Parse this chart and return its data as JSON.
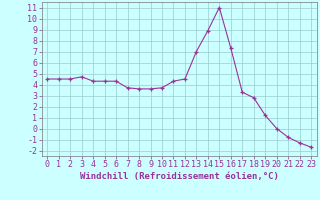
{
  "x": [
    0,
    1,
    2,
    3,
    4,
    5,
    6,
    7,
    8,
    9,
    10,
    11,
    12,
    13,
    14,
    15,
    16,
    17,
    18,
    19,
    20,
    21,
    22,
    23
  ],
  "y": [
    4.5,
    4.5,
    4.5,
    4.7,
    4.3,
    4.3,
    4.3,
    3.7,
    3.6,
    3.6,
    3.7,
    4.3,
    4.5,
    7.0,
    8.9,
    11.0,
    7.3,
    3.3,
    2.8,
    1.2,
    0.0,
    -0.8,
    -1.3,
    -1.7
  ],
  "line_color": "#993399",
  "marker": "+",
  "bg_color": "#ccffff",
  "grid_color": "#99cccc",
  "xlabel": "Windchill (Refroidissement éolien,°C)",
  "xlabel_fontsize": 6.5,
  "tick_fontsize": 6.0,
  "ylim": [
    -2.5,
    11.5
  ],
  "xlim": [
    -0.5,
    23.5
  ],
  "yticks": [
    -2,
    -1,
    0,
    1,
    2,
    3,
    4,
    5,
    6,
    7,
    8,
    9,
    10,
    11
  ],
  "xticks": [
    0,
    1,
    2,
    3,
    4,
    5,
    6,
    7,
    8,
    9,
    10,
    11,
    12,
    13,
    14,
    15,
    16,
    17,
    18,
    19,
    20,
    21,
    22,
    23
  ]
}
